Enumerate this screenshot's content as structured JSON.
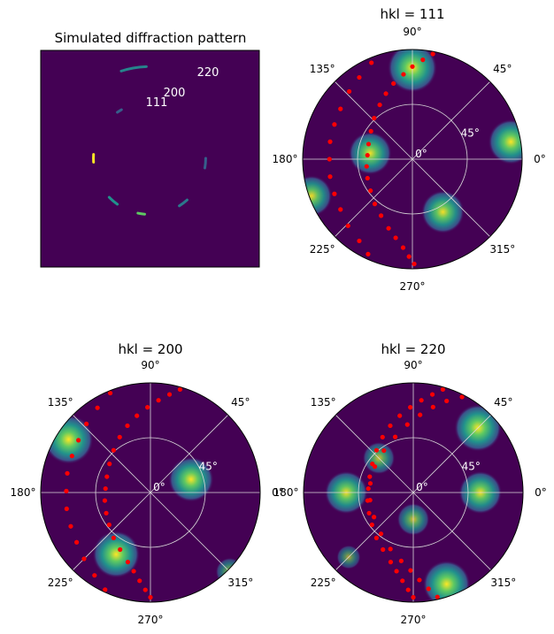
{
  "colors": {
    "background": "#440154",
    "grid": "#d9d9d9",
    "marker": "#ff0000",
    "axis": "#000000",
    "label_text": "#ffffff"
  },
  "chart_data": [
    {
      "type": "heatmap",
      "title": "Simulated diffraction pattern",
      "rings": [
        {
          "label": "111",
          "radius": 0.52,
          "arcs": [
            {
              "from": 120,
              "to": 125,
              "level": 0.3
            },
            {
              "from": 176,
              "to": 184,
              "level": 1.0
            },
            {
              "from": 224,
              "to": 235,
              "level": 0.5
            },
            {
              "from": 258,
              "to": 265,
              "level": 0.75
            },
            {
              "from": 302,
              "to": 312,
              "level": 0.4
            },
            {
              "from": 350,
              "to": 360,
              "level": 0.3
            }
          ]
        },
        {
          "label": "200",
          "radius": 0.62,
          "arcs": []
        },
        {
          "label": "220",
          "radius": 0.85,
          "arcs": [
            {
              "from": 92,
              "to": 108,
              "level": 0.45
            }
          ]
        }
      ]
    },
    {
      "type": "scatter",
      "title": "hkl = 111",
      "theta_ticks": [
        "0°",
        "45°",
        "90°",
        "135°",
        "180°",
        "225°",
        "270°",
        "315°"
      ],
      "r_ticks": [
        "0°",
        "45°"
      ],
      "r_max": 90,
      "peaks": [
        {
          "theta": 90,
          "r": 75,
          "intensity": 1.0
        },
        {
          "theta": 10,
          "r": 82,
          "intensity": 0.9
        },
        {
          "theta": 172,
          "r": 35,
          "intensity": 0.85
        },
        {
          "theta": 300,
          "r": 50,
          "intensity": 0.85
        },
        {
          "theta": 200,
          "r": 88,
          "intensity": 0.8
        }
      ],
      "series": [
        {
          "values": [
            [
              79,
              88
            ],
            [
              84,
              82
            ],
            [
              90,
              76
            ],
            [
              96,
              70
            ],
            [
              104,
              64
            ],
            [
              112,
              58
            ],
            [
              121,
              52
            ],
            [
              133,
              46
            ],
            [
              146,
              41
            ],
            [
              161,
              38
            ],
            [
              175,
              37
            ],
            [
              189,
              38
            ],
            [
              203,
              40
            ],
            [
              217,
              43
            ],
            [
              230,
              48
            ],
            [
              241,
              53
            ],
            [
              251,
              60
            ],
            [
              258,
              66
            ],
            [
              264,
              73
            ],
            [
              268,
              80
            ],
            [
              271,
              86
            ]
          ]
        },
        {
          "values": [
            [
              113,
              86
            ],
            [
              123,
              80
            ],
            [
              133,
              76
            ],
            [
              145,
              72
            ],
            [
              156,
              70
            ],
            [
              168,
              69
            ],
            [
              180,
              68
            ],
            [
              192,
              69
            ],
            [
              204,
              70
            ],
            [
              215,
              72
            ],
            [
              226,
              76
            ],
            [
              237,
              80
            ],
            [
              245,
              86
            ]
          ]
        }
      ]
    },
    {
      "type": "scatter",
      "title": "hkl = 200",
      "theta_ticks": [
        "0°",
        "45°",
        "90°",
        "135°",
        "180°",
        "225°",
        "270°",
        "315°"
      ],
      "r_ticks": [
        "0°",
        "45°"
      ],
      "r_max": 90,
      "peaks": [
        {
          "theta": 147,
          "r": 80,
          "intensity": 1.0
        },
        {
          "theta": 18,
          "r": 35,
          "intensity": 0.9
        },
        {
          "theta": 241,
          "r": 58,
          "intensity": 0.95
        },
        {
          "theta": 315,
          "r": 92,
          "intensity": 0.5
        }
      ],
      "series": [
        {
          "values": [
            [
              74,
              88
            ],
            [
              79,
              82
            ],
            [
              85,
              76
            ],
            [
              92,
              70
            ],
            [
              100,
              64
            ],
            [
              109,
              58
            ],
            [
              119,
              52
            ],
            [
              131,
              46
            ],
            [
              145,
              41
            ],
            [
              160,
              38
            ],
            [
              175,
              37
            ],
            [
              190,
              38
            ],
            [
              205,
              40
            ],
            [
              218,
              43
            ],
            [
              231,
              48
            ],
            [
              242,
              53
            ],
            [
              252,
              60
            ],
            [
              258,
              66
            ],
            [
              263,
              73
            ],
            [
              267,
              80
            ],
            [
              270,
              86
            ]
          ]
        },
        {
          "values": [
            [
              112,
              88
            ],
            [
              122,
              82
            ],
            [
              133,
              77
            ],
            [
              144,
              73
            ],
            [
              155,
              71
            ],
            [
              167,
              70
            ],
            [
              179,
              69
            ],
            [
              191,
              70
            ],
            [
              203,
              71
            ],
            [
              214,
              73
            ],
            [
              225,
              77
            ],
            [
              236,
              82
            ],
            [
              245,
              88
            ]
          ]
        }
      ]
    },
    {
      "type": "scatter",
      "title": "hkl = 220",
      "theta_ticks": [
        "0°",
        "45°",
        "90°",
        "135°",
        "180°",
        "225°",
        "270°",
        "315°"
      ],
      "r_ticks": [
        "0°",
        "45°"
      ],
      "r_max": 90,
      "peaks": [
        {
          "theta": 45,
          "r": 75,
          "intensity": 0.95
        },
        {
          "theta": 135,
          "r": 40,
          "intensity": 0.6
        },
        {
          "theta": 180,
          "r": 55,
          "intensity": 0.85
        },
        {
          "theta": 0,
          "r": 55,
          "intensity": 0.85
        },
        {
          "theta": 270,
          "r": 22,
          "intensity": 0.6
        },
        {
          "theta": 290,
          "r": 80,
          "intensity": 0.95
        },
        {
          "theta": 225,
          "r": 75,
          "intensity": 0.4
        }
      ],
      "series": [
        {
          "values": [
            [
              74,
              88
            ],
            [
              79,
              82
            ],
            [
              85,
              76
            ],
            [
              92,
              70
            ],
            [
              100,
              64
            ],
            [
              109,
              58
            ],
            [
              119,
              52
            ],
            [
              131,
              46
            ],
            [
              145,
              41
            ],
            [
              160,
              38
            ],
            [
              175,
              37
            ],
            [
              190,
              38
            ],
            [
              205,
              40
            ],
            [
              218,
              43
            ],
            [
              231,
              48
            ],
            [
              242,
              53
            ],
            [
              252,
              60
            ],
            [
              258,
              66
            ],
            [
              263,
              73
            ],
            [
              267,
              80
            ],
            [
              270,
              86
            ]
          ]
        },
        {
          "values": [
            [
              63,
              88
            ],
            [
              70,
              80
            ],
            [
              77,
              72
            ],
            [
              85,
              64
            ],
            [
              95,
              56
            ],
            [
              108,
              48
            ],
            [
              125,
              42
            ],
            [
              146,
              38
            ],
            [
              168,
              36
            ],
            [
              190,
              36
            ],
            [
              212,
              38
            ],
            [
              232,
              43
            ],
            [
              248,
              50
            ],
            [
              260,
              57
            ],
            [
              268,
              64
            ],
            [
              274,
              72
            ],
            [
              279,
              80
            ],
            [
              283,
              88
            ]
          ]
        }
      ]
    }
  ]
}
